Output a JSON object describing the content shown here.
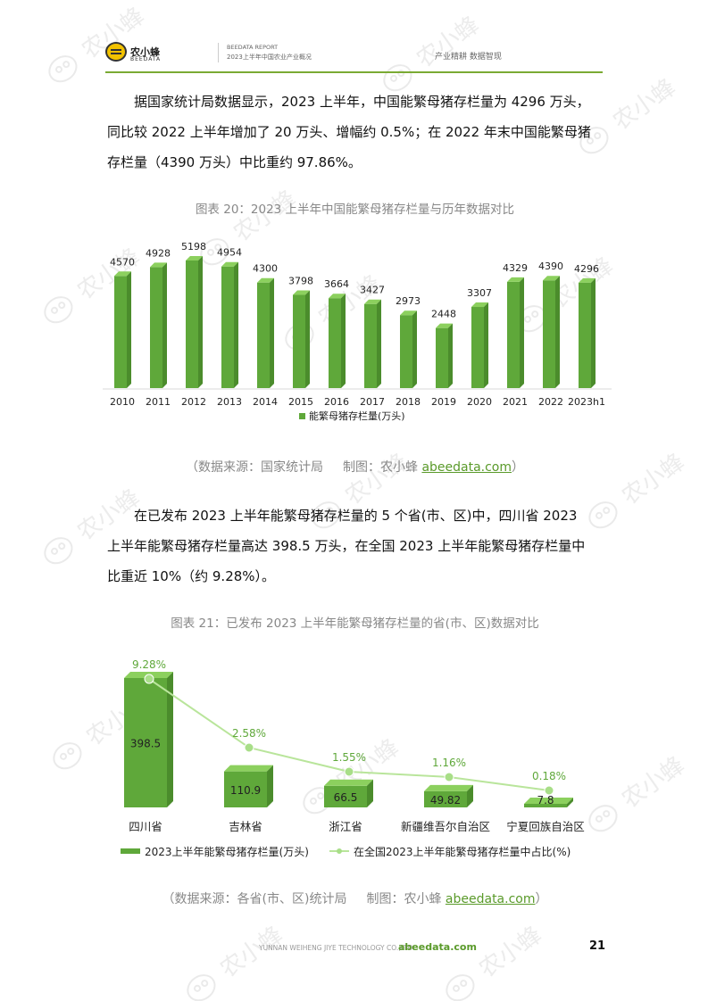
{
  "header": {
    "logo_cn": "农小蜂",
    "logo_en": "BEEDATA",
    "report_en": "BEEDATA REPORT",
    "report_cn": "2023上半年中国农业产业概况",
    "tagline": "产业精耕  数据智现"
  },
  "paragraph1": "据国家统计局数据显示，2023 上半年，中国能繁母猪存栏量为 4296 万头，同比较 2022 上半年增加了 20 万头、增幅约 0.5%；在 2022 年末中国能繁母猪存栏量（4390 万头）中比重约 97.86%。",
  "figure20": {
    "caption": "图表 20：2023 上半年中国能繁母猪存栏量与历年数据对比",
    "source_prefix": "（数据来源：国家统计局",
    "source_maker": "制图：农小蜂",
    "source_link": "abeedata.com",
    "source_suffix": "）"
  },
  "paragraph2": "在已发布 2023 上半年能繁母猪存栏量的 5 个省(市、区)中，四川省 2023 上半年能繁母猪存栏量高达 398.5 万头，在全国 2023 上半年能繁母猪存栏量中比重近 10%（约 9.28%）。",
  "figure21": {
    "caption": "图表 21：已发布 2023 上半年能繁母猪存栏量的省(市、区)数据对比",
    "source_prefix": "（数据来源：各省(市、区)统计局",
    "source_maker": "制图：农小蜂",
    "source_link": "abeedata.com",
    "source_suffix": "）"
  },
  "footer": {
    "company": "YUNNAN WEIHENG JIYE TECHNOLOGY CO.,LTD.",
    "url": "abeedata.com",
    "page": "21"
  },
  "watermark": "农小蜂",
  "colors": {
    "bar_green": "#5fa83a",
    "bar_top": "#8cd05e",
    "line_green": "#b9e59b",
    "accent": "#7aaa33"
  },
  "chart_data": [
    {
      "type": "bar",
      "categories": [
        "2010",
        "2011",
        "2012",
        "2013",
        "2014",
        "2015",
        "2016",
        "2017",
        "2018",
        "2019",
        "2020",
        "2021",
        "2022",
        "2023h1"
      ],
      "series": [
        {
          "name": "能繁母猪存栏量(万头)",
          "values": [
            4570,
            4928,
            5198,
            4954,
            4300,
            3798,
            3664,
            3427,
            2973,
            2448,
            3307,
            4329,
            4390,
            4296
          ]
        }
      ],
      "legend_position": "bottom",
      "grid": false
    },
    {
      "type": "bar",
      "categories": [
        "四川省",
        "吉林省",
        "浙江省",
        "新疆维吾尔自治区",
        "宁夏回族自治区"
      ],
      "series": [
        {
          "name": "2023上半年能繁母猪存栏量(万头)",
          "values": [
            398.5,
            110.9,
            66.5,
            49.82,
            7.8
          ]
        },
        {
          "name": "在全国2023上半年能繁母猪存栏量中占比(%)",
          "type": "line",
          "values": [
            9.28,
            2.58,
            1.55,
            1.16,
            0.18
          ]
        }
      ],
      "percent_labels": [
        "9.28%",
        "2.58%",
        "1.55%",
        "1.16%",
        "0.18%"
      ],
      "legend_position": "bottom",
      "grid": false
    }
  ]
}
